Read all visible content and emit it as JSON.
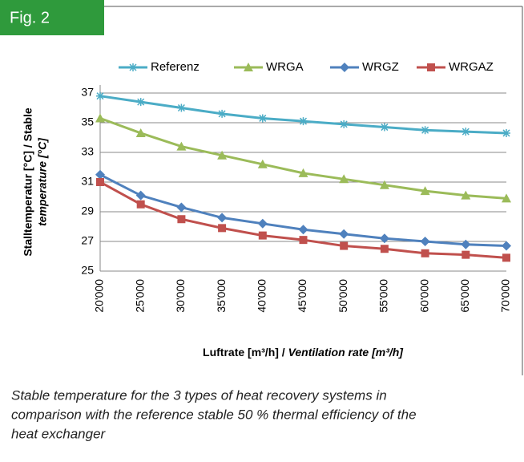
{
  "figure_label": "Fig. 2",
  "caption": [
    "Stable temperature for the 3 types of heat recovery systems in",
    "comparison with the reference stable 50 % thermal efficiency of the",
    "heat exchanger"
  ],
  "chart_data": {
    "type": "line",
    "ylabel": [
      "Stalltemperatur [°C] / Stable",
      "temperature [°C]"
    ],
    "xlabel": [
      "Luftrate [m³/h] /",
      "Ventilation rate [m³/h]"
    ],
    "categories": [
      "20'000",
      "25'000",
      "30'000",
      "35'000",
      "40'000",
      "45'000",
      "50'000",
      "55'000",
      "60'000",
      "65'000",
      "70'000"
    ],
    "series": [
      {
        "name": "Referenz",
        "color": "#4bacc6",
        "marker": "asterisk",
        "values": [
          36.8,
          36.4,
          36.0,
          35.6,
          35.3,
          35.1,
          34.9,
          34.7,
          34.5,
          34.4,
          34.3
        ]
      },
      {
        "name": "WRGA",
        "color": "#9bbb59",
        "marker": "triangle",
        "values": [
          35.3,
          34.3,
          33.4,
          32.8,
          32.2,
          31.6,
          31.2,
          30.8,
          30.4,
          30.1,
          29.9
        ]
      },
      {
        "name": "WRGZ",
        "color": "#4f81bd",
        "marker": "diamond",
        "values": [
          31.5,
          30.1,
          29.3,
          28.6,
          28.2,
          27.8,
          27.5,
          27.2,
          27.0,
          26.8,
          26.7
        ]
      },
      {
        "name": "WRGAZ",
        "color": "#c0504d",
        "marker": "square",
        "values": [
          31.0,
          29.5,
          28.5,
          27.9,
          27.4,
          27.1,
          26.7,
          26.5,
          26.2,
          26.1,
          25.9
        ]
      }
    ],
    "ylim": [
      25,
      37
    ],
    "yticks": [
      25,
      27,
      29,
      31,
      33,
      35,
      37
    ],
    "grid": true,
    "legend": "top"
  }
}
